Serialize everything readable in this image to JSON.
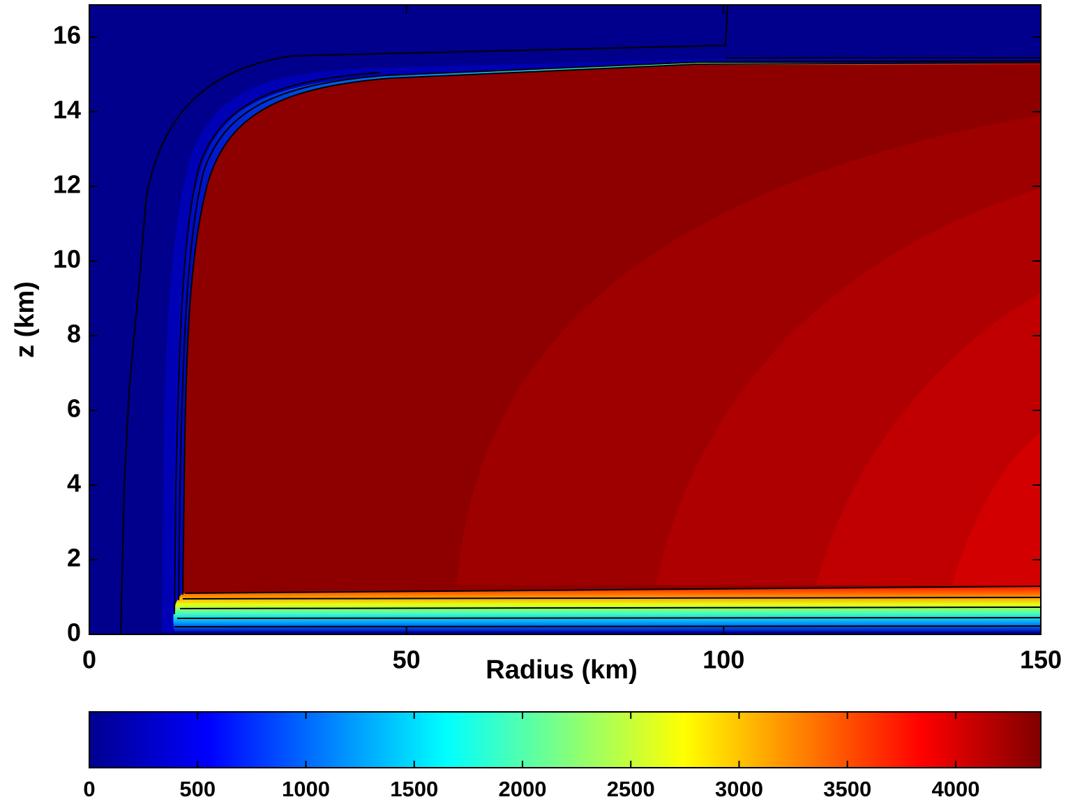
{
  "chart_data": {
    "type": "contour",
    "x_label": "Radius (km)",
    "y_label": "z (km)",
    "xlim": [
      0,
      150
    ],
    "ylim": [
      0,
      16.86
    ],
    "xticks": [
      0,
      50,
      100,
      150
    ],
    "yticks": [
      0,
      2,
      4,
      6,
      8,
      10,
      12,
      14,
      16
    ],
    "colorbar": {
      "clim": [
        0,
        4393
      ],
      "ticks": [
        0,
        500,
        1000,
        1500,
        2000,
        2500,
        3000,
        3500,
        4000
      ],
      "colormap": "jet"
    }
  }
}
